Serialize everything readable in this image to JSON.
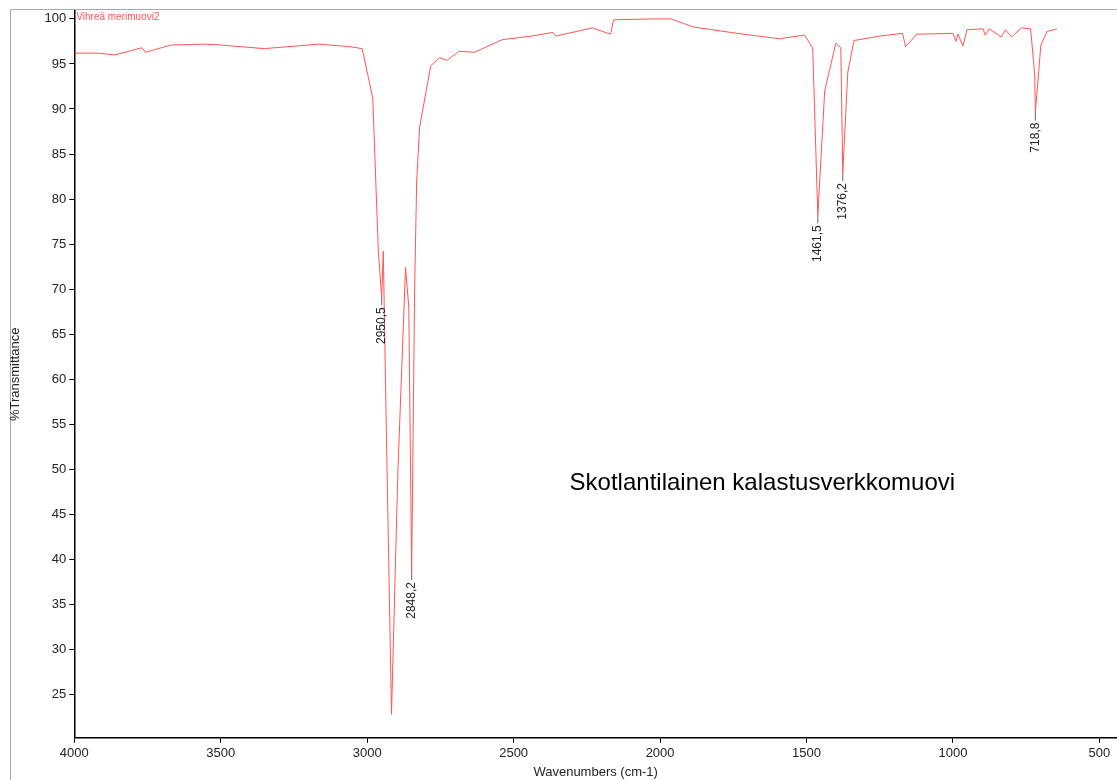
{
  "chart_data": {
    "type": "line",
    "xlabel": "Wavenumbers (cm-1)",
    "ylabel": "%Transmittance",
    "xlim": [
      4000,
      440
    ],
    "ylim": [
      20.2,
      100.9
    ],
    "xticks": [
      4000,
      3500,
      3000,
      2500,
      2000,
      1500,
      1000,
      500
    ],
    "yticks": [
      25,
      30,
      35,
      40,
      45,
      50,
      55,
      60,
      65,
      70,
      75,
      80,
      85,
      90,
      95,
      100
    ],
    "grid": false,
    "legend": "top left",
    "marker": "none",
    "line_style": "solid",
    "series": [
      {
        "name": "Vihreä merimuovi2",
        "color": "#ff5555",
        "x": [
          4000,
          3917,
          3862,
          3769,
          3757,
          3670,
          3548,
          3498,
          3351,
          3239,
          3166,
          3055,
          3017,
          2981,
          2962,
          2950.5,
          2945,
          2935,
          2917,
          2895,
          2869,
          2858,
          2848.2,
          2838,
          2831,
          2821,
          2783,
          2752,
          2728,
          2686,
          2634,
          2538,
          2438,
          2366,
          2355,
          2231,
          2169,
          2159,
          2024,
          1962,
          1886,
          1738,
          1593,
          1507,
          1479,
          1461.5,
          1438,
          1400,
          1383,
          1376.2,
          1359,
          1338,
          1248,
          1172,
          1162,
          1124,
          1000,
          990,
          983,
          966,
          952,
          897,
          890,
          876,
          835,
          821,
          800,
          766,
          735,
          721,
          718.8,
          700,
          679,
          645
        ],
        "values": [
          96.2,
          96.2,
          96.0,
          96.8,
          96.3,
          97.1,
          97.2,
          97.1,
          96.7,
          97.0,
          97.2,
          96.9,
          96.7,
          91.2,
          74.2,
          69.1,
          74.2,
          55,
          22.8,
          50,
          72.4,
          68,
          38.6,
          70,
          82,
          88,
          94.8,
          95.7,
          95.4,
          96.4,
          96.3,
          97.7,
          98.1,
          98.5,
          98.1,
          99.0,
          98.3,
          99.9,
          100,
          100,
          99.1,
          98.4,
          97.8,
          98.2,
          96.8,
          78.2,
          92,
          97.3,
          96.8,
          82.9,
          94.1,
          97.6,
          98.1,
          98.4,
          96.9,
          98.3,
          98.4,
          97.5,
          98.3,
          97.0,
          98.8,
          98.9,
          98.2,
          98.9,
          98.0,
          98.8,
          98.0,
          99.0,
          98.9,
          93.8,
          89.6,
          97.1,
          98.6,
          98.9
        ]
      }
    ],
    "annotations": [
      {
        "text": "2950,5",
        "x": 2950.5,
        "y": 69.1
      },
      {
        "text": "2848,2",
        "x": 2848.2,
        "y": 38.6
      },
      {
        "text": "1461,5",
        "x": 1461.5,
        "y": 78.2
      },
      {
        "text": "1376,2",
        "x": 1376.2,
        "y": 82.9
      },
      {
        "text": "718,8",
        "x": 718.8,
        "y": 89.6
      },
      "Skotlantilainen kalastusverkkomuovi"
    ]
  }
}
